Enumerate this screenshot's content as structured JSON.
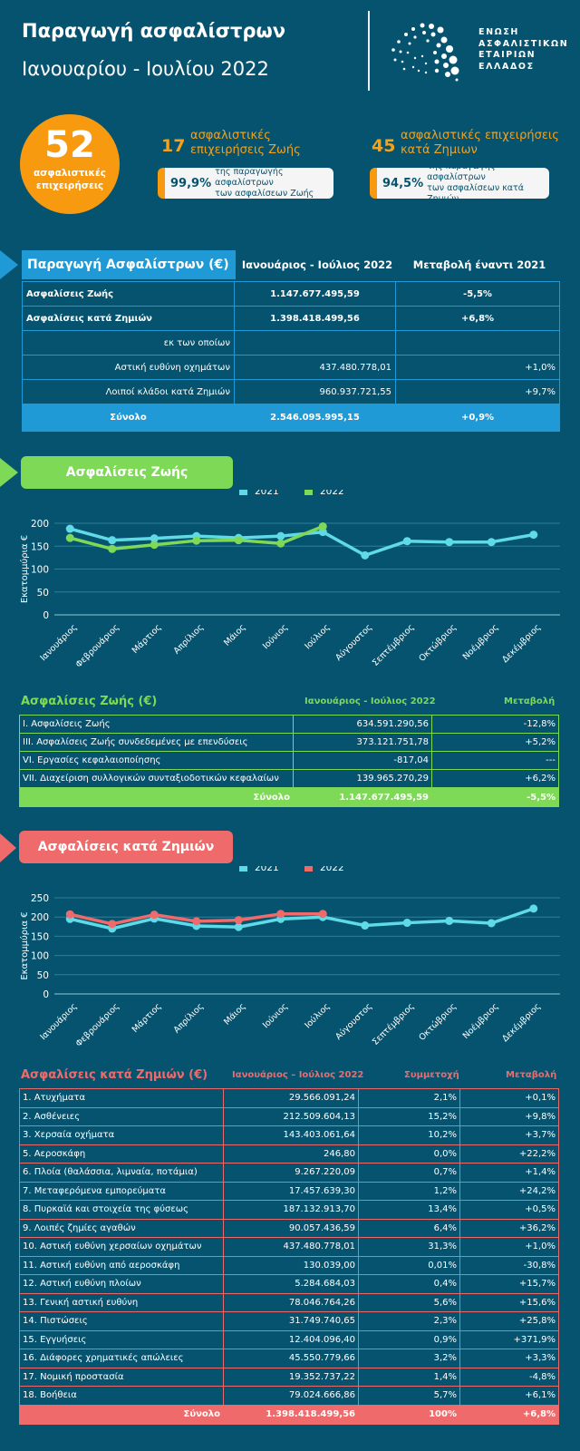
{
  "header": {
    "title": "Παραγωγή ασφαλίστρων",
    "subtitle": "Ιανουαρίου - Ιουλίου 2022",
    "logo_lines": [
      "ΕΝΩΣΗ",
      "ΑΣΦΑΛΙΣΤΙΚΩΝ",
      "ΕΤΑΙΡΙΩΝ",
      "ΕΛΛΑΔΟΣ"
    ]
  },
  "kpis": {
    "total": {
      "number": "52",
      "label_line1": "ασφαλιστικές",
      "label_line2": "επιχειρήσεις"
    },
    "life": {
      "number": "17",
      "text_line1": "ασφαλιστικές",
      "text_line2": "επιχειρήσεις Ζωής",
      "pct": "99,9%",
      "pct_text_line1": "της παραγωγής ασφαλίστρων",
      "pct_text_line2": "των ασφαλίσεων Ζωής"
    },
    "nonlife": {
      "number": "45",
      "text_line1": "ασφαλιστικές επιχειρήσεις",
      "text_line2": "κατά Ζημιων",
      "pct": "94,5%",
      "pct_text_line1": "της παραγωγής ασφαλίστρων",
      "pct_text_line2": "των ασφαλίσεων κατά Ζημιών"
    }
  },
  "colors": {
    "background": "#06536f",
    "orange": "#f79a10",
    "blue": "#1f9ad6",
    "green": "#7ed957",
    "red": "#ef6b6b",
    "cyan_2021": "#5fdbe8"
  },
  "summary_table": {
    "title": "Παραγωγή Ασφαλίστρων (€)",
    "col_period": "Ιανουάριος - Ιούλιος  2022",
    "col_change": "Μεταβολή έναντι 2021",
    "rows": [
      {
        "label": "Ασφαλίσεις Ζωής",
        "value": "1.147.677.495,59",
        "change": "-5,5%"
      },
      {
        "label": "Ασφαλίσεις κατά Ζημιών",
        "value": "1.398.418.499,56",
        "change": "+6,8%"
      },
      {
        "label": "εκ των οποίων",
        "value": "",
        "change": ""
      },
      {
        "label": "Αστική ευθύνη οχημάτων",
        "value": "437.480.778,01",
        "change": "+1,0%"
      },
      {
        "label": "Λοιποί κλάδοι κατά Ζημιών",
        "value": "960.937.721,55",
        "change": "+9,7%"
      }
    ],
    "total": {
      "label": "Σύνολο",
      "value": "2.546.095.995,15",
      "change": "+0,9%"
    }
  },
  "life_section": {
    "tag": "Ασφαλίσεις Ζωής",
    "table": {
      "title": "Ασφαλίσεις Ζωής (€)",
      "col_period": "Ιανουάριος - Ιούλιος 2022",
      "col_change": "Μεταβολή",
      "rows": [
        {
          "label": "I. Ασφαλίσεις  Ζωής",
          "value": "634.591.290,56",
          "change": "-12,8%"
        },
        {
          "label": "III. Ασφαλίσεις  Ζωής  συνδεδεμένες με επενδύσεις",
          "value": "373.121.751,78",
          "change": "+5,2%"
        },
        {
          "label": "VI. Εργασίες κεφαλαιοποίησης",
          "value": "-817,04",
          "change": "---"
        },
        {
          "label": "VII. Διαχείριση συλλογικών συνταξιοδοτικών κεφαλαίων",
          "value": "139.965.270,29",
          "change": "+6,2%"
        }
      ],
      "total": {
        "label": "Σύνολο",
        "value": "1.147.677.495,59",
        "change": "-5,5%"
      }
    }
  },
  "nonlife_section": {
    "tag": "Ασφαλίσεις κατά Ζημιών",
    "table": {
      "title": "Ασφαλίσεις κατά Ζημιών (€)",
      "col_period": "Ιανουάριος – Ιούλιος 2022",
      "col_share": "Συμμετοχή",
      "col_change": "Μεταβολή",
      "rows": [
        {
          "label": "1. Ατυχήματα",
          "value": "29.566.091,24",
          "share": "2,1%",
          "change": "+0,1%"
        },
        {
          "label": "2. Ασθένειες",
          "value": "212.509.604,13",
          "share": "15,2%",
          "change": "+9,8%"
        },
        {
          "label": "3. Χερσαία οχήματα",
          "value": "143.403.061,64",
          "share": "10,2%",
          "change": "+3,7%"
        },
        {
          "label": "5. Αεροσκάφη",
          "value": "246,80",
          "share": "0,0%",
          "change": "+22,2%"
        },
        {
          "label": "6. Πλοία (θαλάσσια, λιμναία, ποτάμια)",
          "value": "9.267.220,09",
          "share": "0,7%",
          "change": "+1,4%"
        },
        {
          "label": "7. Μεταφερόμενα εμπορεύματα",
          "value": "17.457.639,30",
          "share": "1,2%",
          "change": "+24,2%"
        },
        {
          "label": "8. Πυρκαϊά και στοιχεία της φύσεως",
          "value": "187.132.913,70",
          "share": "13,4%",
          "change": "+0,5%"
        },
        {
          "label": "9. Λοιπές ζημίες αγαθών",
          "value": "90.057.436,59",
          "share": "6,4%",
          "change": "+36,2%"
        },
        {
          "label": "10. Αστική ευθύνη χερσαίων οχημάτων",
          "value": "437.480.778,01",
          "share": "31,3%",
          "change": "+1,0%"
        },
        {
          "label": "11. Αστική ευθύνη από αεροσκάφη",
          "value": "130.039,00",
          "share": "0,01%",
          "change": "-30,8%"
        },
        {
          "label": "12. Αστική ευθύνη πλοίων",
          "value": "5.284.684,03",
          "share": "0,4%",
          "change": "+15,7%"
        },
        {
          "label": "13. Γενική αστική ευθύνη",
          "value": "78.046.764,26",
          "share": "5,6%",
          "change": "+15,6%"
        },
        {
          "label": "14. Πιστώσεις",
          "value": "31.749.740,65",
          "share": "2,3%",
          "change": "+25,8%"
        },
        {
          "label": "15. Εγγυήσεις",
          "value": "12.404.096,40",
          "share": "0,9%",
          "change": "+371,9%"
        },
        {
          "label": "16. Διάφορες χρηματικές απώλειες",
          "value": "45.550.779,66",
          "share": "3,2%",
          "change": "+3,3%"
        },
        {
          "label": "17. Νομική προστασία",
          "value": "19.352.737,22",
          "share": "1,4%",
          "change": "-4,8%"
        },
        {
          "label": "18. Βοήθεια",
          "value": "79.024.666,86",
          "share": "5,7%",
          "change": "+6,1%"
        }
      ],
      "total": {
        "label": "Σύνολο",
        "value": "1.398.418.499,56",
        "share": "100%",
        "change": "+6,8%"
      }
    }
  },
  "chart_data": [
    {
      "type": "line",
      "title": "Ασφαλίσεις Ζωής",
      "xlabel": "",
      "ylabel": "Εκατομμύρια €",
      "categories": [
        "Ιανουάριος",
        "Φεβρουάριος",
        "Μάρτιος",
        "Απρίλιος",
        "Μάιος",
        "Ιούνιος",
        "Ιούλιος",
        "Αύγουστος",
        "Σεπτέμβριος",
        "Οκτώβριος",
        "Νοέμβριος",
        "Δεκέμβριος"
      ],
      "ylim": [
        0,
        200
      ],
      "yticks": [
        0,
        50,
        100,
        150,
        200
      ],
      "grid": true,
      "legend": "top-center",
      "series": [
        {
          "name": "2021",
          "color": "#5fdbe8",
          "values": [
            188,
            163,
            167,
            172,
            168,
            172,
            181,
            130,
            161,
            159,
            159,
            175
          ]
        },
        {
          "name": "2022",
          "color": "#7ed957",
          "values": [
            168,
            144,
            153,
            162,
            163,
            156,
            193,
            null,
            null,
            null,
            null,
            null
          ]
        }
      ]
    },
    {
      "type": "line",
      "title": "Ασφαλίσεις κατά Ζημιών",
      "xlabel": "",
      "ylabel": "Εκατομμύρια €",
      "categories": [
        "Ιανουάριος",
        "Φεβρουάριος",
        "Μάρτιος",
        "Απρίλιος",
        "Μάιος",
        "Ιούνιος",
        "Ιούλιος",
        "Αύγουστος",
        "Σεπτέμβριος",
        "Οκτώβριος",
        "Νοέμβριος",
        "Δεκέμβριος"
      ],
      "ylim": [
        0,
        250
      ],
      "yticks": [
        0,
        50,
        100,
        150,
        200,
        250
      ],
      "grid": true,
      "legend": "top-center",
      "series": [
        {
          "name": "2021",
          "color": "#5fdbe8",
          "values": [
            195,
            170,
            196,
            177,
            174,
            195,
            200,
            178,
            185,
            190,
            184,
            222
          ]
        },
        {
          "name": "2022",
          "color": "#ef6b6b",
          "values": [
            207,
            182,
            206,
            189,
            192,
            208,
            208,
            null,
            null,
            null,
            null,
            null
          ]
        }
      ]
    }
  ]
}
